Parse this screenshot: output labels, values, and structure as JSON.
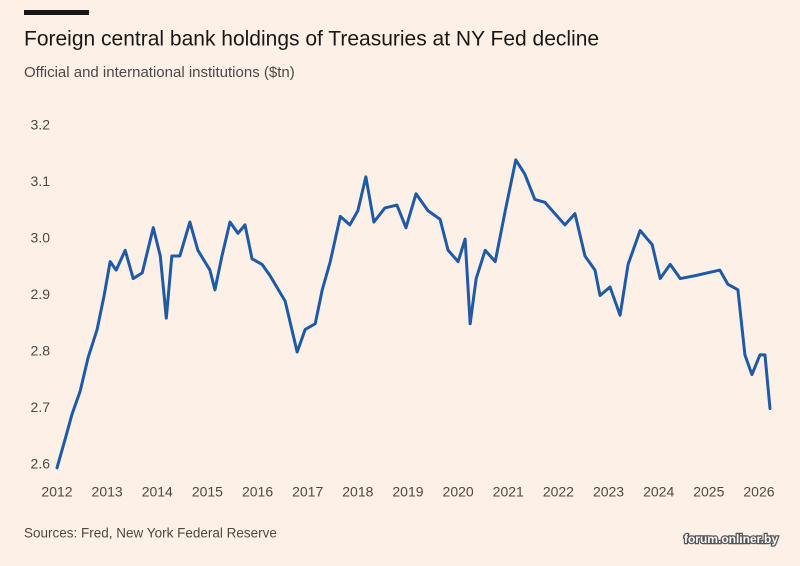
{
  "chart_data": {
    "type": "line",
    "title": "Foreign central bank holdings of Treasuries at NY Fed decline",
    "subtitle": "Official and international institutions ($tn)",
    "source": "Sources: Fred, New York Federal Reserve",
    "watermark": "forum.onliner.by",
    "x": [
      2012.0,
      2012.16,
      2012.3,
      2012.46,
      2012.62,
      2012.8,
      2012.94,
      2013.06,
      2013.18,
      2013.36,
      2013.52,
      2013.7,
      2013.92,
      2014.06,
      2014.18,
      2014.29,
      2014.45,
      2014.65,
      2014.81,
      2015.05,
      2015.15,
      2015.29,
      2015.45,
      2015.61,
      2015.75,
      2015.89,
      2016.09,
      2016.25,
      2016.55,
      2016.79,
      2016.95,
      2017.15,
      2017.29,
      2017.45,
      2017.65,
      2017.84,
      2018.0,
      2018.16,
      2018.32,
      2018.54,
      2018.78,
      2018.96,
      2019.16,
      2019.4,
      2019.64,
      2019.8,
      2020.0,
      2020.14,
      2020.24,
      2020.36,
      2020.54,
      2020.74,
      2020.94,
      2021.15,
      2021.33,
      2021.53,
      2021.73,
      2021.93,
      2022.13,
      2022.33,
      2022.53,
      2022.73,
      2022.83,
      2023.03,
      2023.23,
      2023.39,
      2023.63,
      2023.87,
      2024.03,
      2024.23,
      2024.43,
      2024.72,
      2025.22,
      2025.38,
      2025.58,
      2025.72,
      2025.86,
      2026.02,
      2026.12,
      2026.22
    ],
    "series": [
      {
        "name": "Holdings",
        "color": "#1f5aa6",
        "values": [
          2.595,
          2.645,
          2.69,
          2.73,
          2.79,
          2.84,
          2.9,
          2.96,
          2.945,
          2.98,
          2.93,
          2.94,
          3.02,
          2.97,
          2.86,
          2.97,
          2.97,
          3.03,
          2.98,
          2.945,
          2.91,
          2.97,
          3.03,
          3.01,
          3.025,
          2.965,
          2.955,
          2.935,
          2.89,
          2.8,
          2.84,
          2.85,
          2.91,
          2.96,
          3.04,
          3.025,
          3.05,
          3.11,
          3.03,
          3.055,
          3.06,
          3.02,
          3.08,
          3.05,
          3.035,
          2.98,
          2.96,
          3.0,
          2.85,
          2.93,
          2.98,
          2.96,
          3.05,
          3.14,
          3.115,
          3.07,
          3.065,
          3.045,
          3.025,
          3.045,
          2.97,
          2.945,
          2.9,
          2.915,
          2.865,
          2.955,
          3.015,
          2.99,
          2.93,
          2.955,
          2.93,
          2.935,
          2.945,
          2.92,
          2.91,
          2.795,
          2.76,
          2.795,
          2.795,
          2.7
        ]
      }
    ],
    "xlim": [
      2012,
      2026.3
    ],
    "xticks": [
      2012,
      2013,
      2014,
      2015,
      2016,
      2017,
      2018,
      2019,
      2020,
      2021,
      2022,
      2023,
      2024,
      2025,
      2026
    ],
    "ylim": [
      2.6,
      3.2
    ],
    "yticks": [
      2.6,
      2.7,
      2.8,
      2.9,
      {
        "value": 3,
        "label": "3.0"
      },
      3.1,
      3.2
    ],
    "grid": false
  }
}
